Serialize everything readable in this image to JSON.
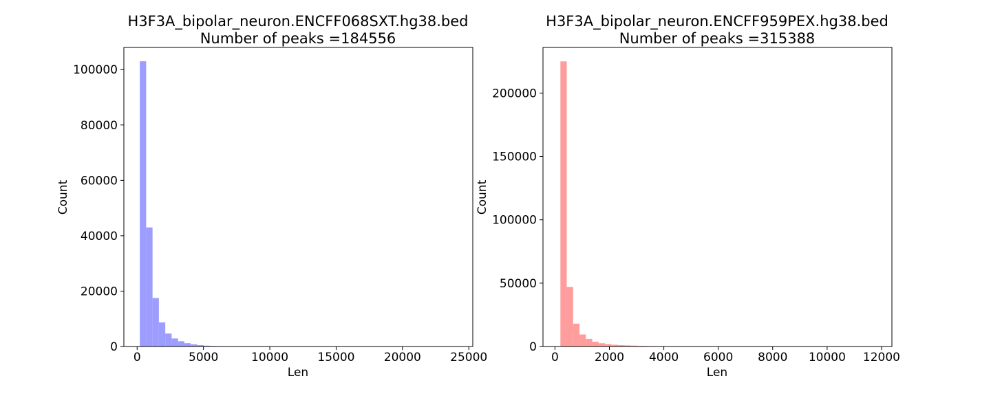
{
  "chart_data": [
    {
      "type": "bar",
      "title": "H3F3A_bipolar_neuron.ENCFF068SXT.hg38.bed",
      "subtitle": "Number of peaks =184556",
      "xlabel": "Len",
      "ylabel": "Count",
      "xlim": [
        -1000,
        25300
      ],
      "ylim": [
        0,
        108000
      ],
      "bin_start": 200,
      "bin_width": 480,
      "values": [
        103000,
        43000,
        17500,
        8700,
        4700,
        2900,
        1900,
        1200,
        800,
        500,
        300,
        200,
        150,
        100,
        80,
        60,
        40,
        30,
        25,
        20,
        15,
        12,
        10,
        8,
        6,
        5,
        4,
        3,
        3,
        2,
        2,
        2,
        1,
        1,
        1,
        1,
        1,
        1,
        1,
        1,
        1,
        1,
        1,
        1,
        1,
        1,
        1,
        1,
        1,
        1
      ],
      "xticks": [
        0,
        5000,
        10000,
        15000,
        20000,
        25000
      ],
      "xtick_labels": [
        "0",
        "5000",
        "10000",
        "15000",
        "20000",
        "25000"
      ],
      "yticks": [
        0,
        20000,
        40000,
        60000,
        80000,
        100000
      ],
      "ytick_labels": [
        "0",
        "20000",
        "40000",
        "60000",
        "80000",
        "100000"
      ],
      "color": "#9d9dff",
      "grid": false
    },
    {
      "type": "bar",
      "title": "H3F3A_bipolar_neuron.ENCFF959PEX.hg38.bed",
      "subtitle": "Number of peaks =315388",
      "xlabel": "Len",
      "ylabel": "Count",
      "xlim": [
        -440,
        12380
      ],
      "ylim": [
        0,
        236000
      ],
      "bin_start": 200,
      "bin_width": 234,
      "values": [
        225000,
        47000,
        18000,
        9500,
        6000,
        3800,
        2600,
        1900,
        1400,
        1100,
        900,
        700,
        500,
        400,
        300,
        250,
        200,
        150,
        120,
        100,
        80,
        70,
        60,
        50,
        40,
        35,
        30,
        25,
        20,
        18,
        15,
        12,
        10,
        8,
        7,
        6,
        5,
        4,
        4,
        3,
        3,
        2,
        2,
        2,
        2,
        1,
        1,
        1,
        1,
        1
      ],
      "xticks": [
        0,
        2000,
        4000,
        6000,
        8000,
        10000,
        12000
      ],
      "xtick_labels": [
        "0",
        "2000",
        "4000",
        "6000",
        "8000",
        "10000",
        "12000"
      ],
      "yticks": [
        0,
        50000,
        100000,
        150000,
        200000
      ],
      "ytick_labels": [
        "0",
        "50000",
        "100000",
        "150000",
        "200000"
      ],
      "color": "#ff9d9d",
      "grid": false
    }
  ]
}
